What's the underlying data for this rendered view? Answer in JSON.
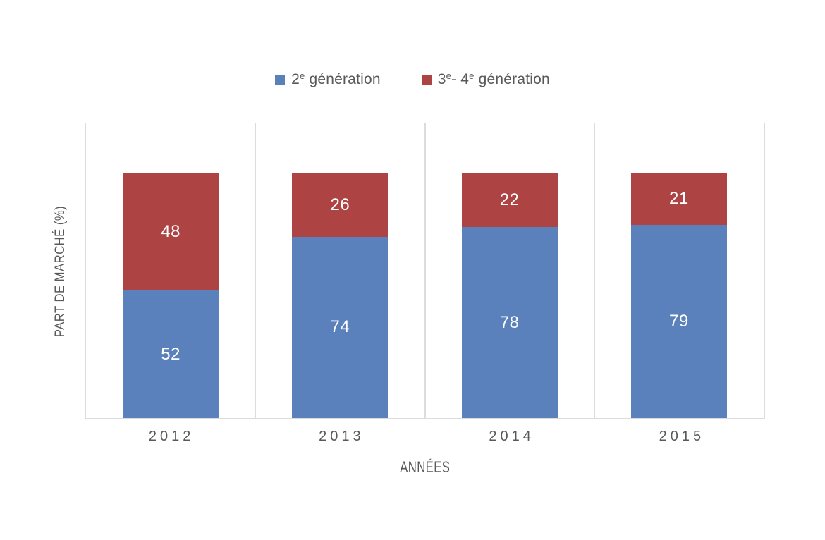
{
  "chart": {
    "legend": {
      "items": [
        {
          "base": "2",
          "sup": "e",
          "mid": "",
          "sup2": "",
          "rest": " génération",
          "label": "2e génération"
        },
        {
          "base": "3",
          "sup": "e",
          "mid": "- 4",
          "sup2": "e",
          "rest": " génération",
          "label": "3e- 4e génération"
        }
      ]
    },
    "y_axis_title": "PART DE MARCHÉ (%)",
    "x_axis_title": "ANNÉES"
  },
  "chart_data": {
    "type": "bar",
    "stacked": true,
    "categories": [
      "2012",
      "2013",
      "2014",
      "2015"
    ],
    "series": [
      {
        "name": "2e génération",
        "color": "#5b81bd",
        "values": [
          52,
          74,
          78,
          79
        ]
      },
      {
        "name": "3e- 4e génération",
        "color": "#ad4342",
        "values": [
          48,
          26,
          22,
          21
        ]
      }
    ],
    "title": "",
    "xlabel": "ANNÉES",
    "ylabel": "PART DE MARCHÉ (%)",
    "ylim": [
      0,
      120
    ],
    "stack_total": 100,
    "value_labels": "centered white labels inside each segment",
    "legend_position": "top-center",
    "grid": "vertical category separator lines, no horizontal gridlines, no y tick labels"
  },
  "colors": {
    "series_blue": "#5b81bd",
    "series_red": "#ad4342",
    "axis_line": "#dcdcdc",
    "text": "#595959",
    "value_label": "#ffffff",
    "background": "#ffffff"
  }
}
